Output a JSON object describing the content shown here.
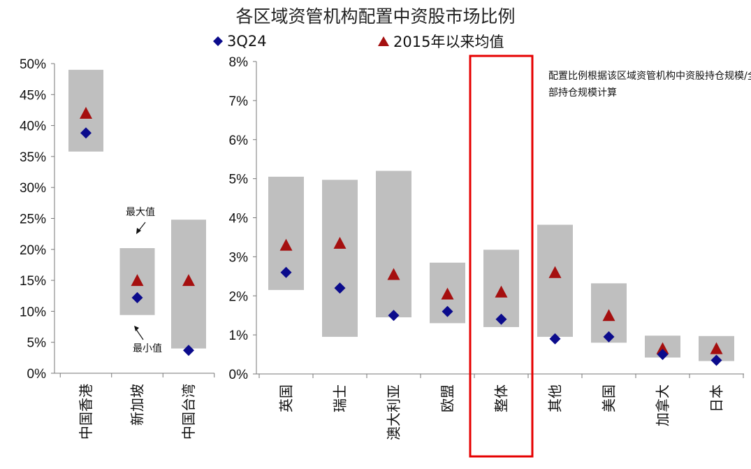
{
  "title": "各区域资管机构配置中资股市场比例",
  "legend": {
    "diamond_label": "3Q24",
    "triangle_label": "2015年以来均值"
  },
  "note": "配置比例根据该区域资管机构中资股持仓规模/全部持仓规模计算",
  "annotations": {
    "max_label": "最大值",
    "min_label": "最小值"
  },
  "colors": {
    "range_bar": "#bfbfbf",
    "diamond": "#0b0b8c",
    "triangle": "#a50f0f",
    "highlight": "#e60000"
  },
  "chart_data": [
    {
      "type": "range-bar with markers",
      "title": "",
      "ylim": [
        0,
        50
      ],
      "yticks": [
        "0%",
        "5%",
        "10%",
        "15%",
        "20%",
        "25%",
        "30%",
        "35%",
        "40%",
        "45%",
        "50%"
      ],
      "categories": [
        "中国香港",
        "新加坡",
        "中国台湾"
      ],
      "series": [
        {
          "name": "3Q24",
          "values": [
            38.8,
            12.2,
            3.7
          ]
        },
        {
          "name": "2015年以来均值",
          "values": [
            42.0,
            15.0,
            15.0
          ]
        }
      ],
      "range_min": [
        35.8,
        9.4,
        4.0
      ],
      "range_max": [
        49.0,
        20.2,
        24.8
      ]
    },
    {
      "type": "range-bar with markers",
      "title": "",
      "ylim": [
        0,
        8
      ],
      "yticks": [
        "0%",
        "1%",
        "2%",
        "3%",
        "4%",
        "5%",
        "6%",
        "7%",
        "8%"
      ],
      "categories": [
        "英国",
        "瑞士",
        "澳大利亚",
        "欧盟",
        "整体",
        "其他",
        "美国",
        "加拿大",
        "日本"
      ],
      "highlight": "整体",
      "series": [
        {
          "name": "3Q24",
          "values": [
            2.6,
            2.2,
            1.5,
            1.6,
            1.4,
            0.9,
            0.95,
            0.5,
            0.35
          ]
        },
        {
          "name": "2015年以来均值",
          "values": [
            3.3,
            3.35,
            2.55,
            2.05,
            2.1,
            2.6,
            1.5,
            0.65,
            0.65
          ]
        }
      ],
      "range_min": [
        2.15,
        0.95,
        1.45,
        1.3,
        1.2,
        0.95,
        0.8,
        0.42,
        0.33
      ],
      "range_max": [
        5.05,
        4.97,
        5.2,
        2.85,
        3.18,
        3.82,
        2.32,
        0.98,
        0.97
      ]
    }
  ]
}
